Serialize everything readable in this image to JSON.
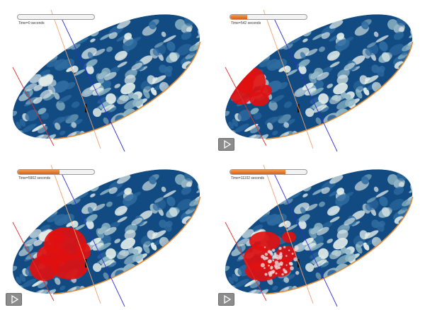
{
  "panels": [
    {
      "time_label": "Time=0 seconds",
      "progress": 0.0,
      "show_play_button": false,
      "show_fire": false
    },
    {
      "time_label": "Time=542 seconds",
      "progress": 0.22,
      "show_play_button": true,
      "show_fire": true
    },
    {
      "time_label": "Time=5902 seconds",
      "progress": 0.55,
      "show_play_button": true,
      "show_fire": true
    },
    {
      "time_label": "Time=11102 seconds",
      "progress": 0.72,
      "show_play_button": true,
      "show_fire": true
    }
  ],
  "colors": {
    "progress_fill": "#e07020",
    "terrain_dark": "#124a82",
    "terrain_light": "#e4eeea",
    "fire": "#e01010",
    "rim": "#e8862a",
    "line_red": "#e03030",
    "line_orange": "#f0a070",
    "line_blue": "#3030d0",
    "play_button": "#8c8c8c"
  },
  "icons": {
    "play": "play-icon"
  }
}
